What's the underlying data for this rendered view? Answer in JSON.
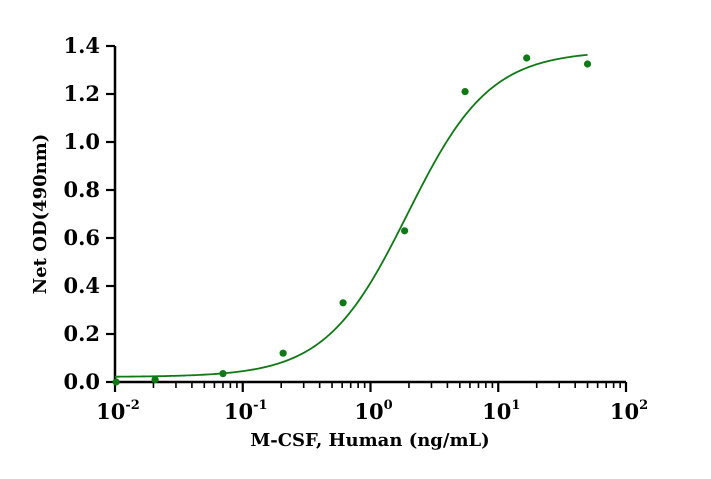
{
  "chart_data": {
    "type": "scatter",
    "xlabel": "M-CSF, Human (ng/mL)",
    "ylabel": "Net OD(490nm)",
    "x_scale": "log",
    "xlim": [
      0.01,
      100
    ],
    "ylim": [
      0,
      1.4
    ],
    "x_ticks": [
      {
        "base": "10",
        "exp": "-2",
        "value": 0.01
      },
      {
        "base": "10",
        "exp": "-1",
        "value": 0.1
      },
      {
        "base": "10",
        "exp": "0",
        "value": 1
      },
      {
        "base": "10",
        "exp": "1",
        "value": 10
      },
      {
        "base": "10",
        "exp": "2",
        "value": 100
      }
    ],
    "y_ticks": [
      "0.0",
      "0.2",
      "0.4",
      "0.6",
      "0.8",
      "1.0",
      "1.2",
      "1.4"
    ],
    "grid": false,
    "color": "#0f7a15",
    "points": [
      {
        "x": 0.0102,
        "y": 0.0
      },
      {
        "x": 0.0206,
        "y": 0.01
      },
      {
        "x": 0.07,
        "y": 0.035
      },
      {
        "x": 0.207,
        "y": 0.12
      },
      {
        "x": 0.61,
        "y": 0.33
      },
      {
        "x": 1.85,
        "y": 0.63
      },
      {
        "x": 5.5,
        "y": 1.21
      },
      {
        "x": 16.7,
        "y": 1.35
      },
      {
        "x": 50.0,
        "y": 1.325
      }
    ],
    "fit": {
      "model": "4PL",
      "bottom": 0.021,
      "top": 1.38,
      "ec50": 1.95,
      "hill": 1.35,
      "x_range": [
        0.01,
        50
      ]
    }
  }
}
